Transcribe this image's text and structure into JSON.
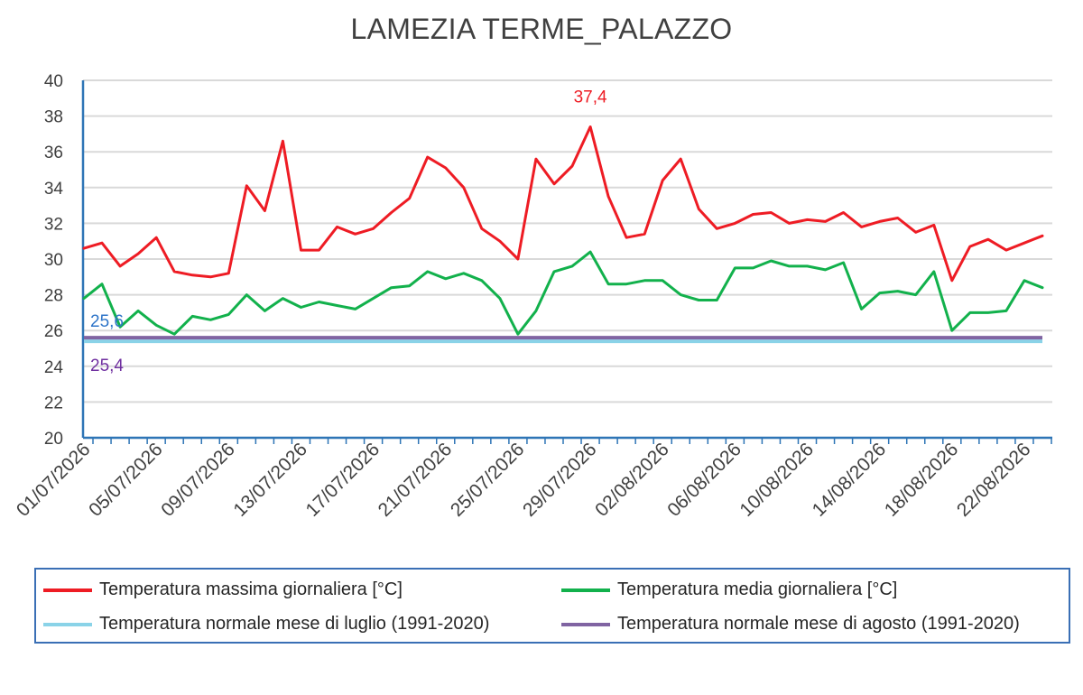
{
  "chart_data": {
    "type": "line",
    "title": "LAMEZIA TERME_PALAZZO",
    "xlabel": "",
    "ylabel": "",
    "ylim": [
      20,
      40
    ],
    "yticks": [
      "20",
      "22",
      "24",
      "26",
      "28",
      "30",
      "32",
      "34",
      "36",
      "38",
      "40"
    ],
    "x": [
      "01/07/2026",
      "02/07/2026",
      "03/07/2026",
      "04/07/2026",
      "05/07/2026",
      "06/07/2026",
      "07/07/2026",
      "08/07/2026",
      "09/07/2026",
      "10/07/2026",
      "11/07/2026",
      "12/07/2026",
      "13/07/2026",
      "14/07/2026",
      "15/07/2026",
      "16/07/2026",
      "17/07/2026",
      "18/07/2026",
      "19/07/2026",
      "20/07/2026",
      "21/07/2026",
      "22/07/2026",
      "23/07/2026",
      "24/07/2026",
      "25/07/2026",
      "26/07/2026",
      "27/07/2026",
      "28/07/2026",
      "29/07/2026",
      "30/07/2026",
      "31/07/2026",
      "01/08/2026",
      "02/08/2026",
      "03/08/2026",
      "04/08/2026",
      "05/08/2026",
      "06/08/2026",
      "07/08/2026",
      "08/08/2026",
      "09/08/2026",
      "10/08/2026",
      "11/08/2026",
      "12/08/2026",
      "13/08/2026",
      "14/08/2026",
      "15/08/2026",
      "16/08/2026",
      "17/08/2026",
      "18/08/2026",
      "19/08/2026",
      "20/08/2026",
      "21/08/2026",
      "22/08/2026",
      "23/08/2026"
    ],
    "xtick_labels": [
      "01/07/2026",
      "05/07/2026",
      "09/07/2026",
      "13/07/2026",
      "17/07/2026",
      "21/07/2026",
      "25/07/2026",
      "29/07/2026",
      "02/08/2026",
      "06/08/2026",
      "10/08/2026",
      "14/08/2026",
      "18/08/2026",
      "22/08/2026"
    ],
    "grid": true,
    "legend_position": "bottom",
    "series": [
      {
        "name": "Temperatura massima giornaliera [°C]",
        "color": "#ee1c24",
        "values": [
          30.6,
          30.9,
          29.6,
          30.3,
          31.2,
          29.3,
          29.1,
          29.0,
          29.2,
          34.1,
          32.7,
          36.6,
          30.5,
          30.5,
          31.8,
          31.4,
          31.7,
          32.6,
          33.4,
          35.7,
          35.1,
          34.0,
          31.7,
          31.0,
          30.0,
          35.6,
          34.2,
          35.2,
          37.4,
          33.5,
          31.2,
          31.4,
          34.4,
          35.6,
          32.8,
          31.7,
          32.0,
          32.5,
          32.6,
          32.0,
          32.2,
          32.1,
          32.6,
          31.8,
          32.1,
          32.3,
          31.5,
          31.9,
          28.8,
          30.7,
          31.1,
          30.5,
          30.9,
          31.3
        ]
      },
      {
        "name": "Temperatura media giornaliera [°C]",
        "color": "#12b14c",
        "values": [
          27.8,
          28.6,
          26.2,
          27.1,
          26.3,
          25.8,
          26.8,
          26.6,
          26.9,
          28.0,
          27.1,
          27.8,
          27.3,
          27.6,
          27.4,
          27.2,
          27.8,
          28.4,
          28.5,
          29.3,
          28.9,
          29.2,
          28.8,
          27.8,
          25.8,
          27.1,
          29.3,
          29.6,
          30.4,
          28.6,
          28.6,
          28.8,
          28.8,
          28.0,
          27.7,
          27.7,
          29.5,
          29.5,
          29.9,
          29.6,
          29.6,
          29.4,
          29.8,
          27.2,
          28.1,
          28.2,
          28.0,
          29.3,
          26.0,
          27.0,
          27.0,
          27.1,
          28.8,
          28.4
        ]
      },
      {
        "name": "Temperatura normale mese di luglio (1991-2020)",
        "color": "#8ad3e8",
        "constant": 25.4,
        "label": "25,4",
        "label_color": "#7030a0"
      },
      {
        "name": "Temperatura normale mese di agosto (1991-2020)",
        "color": "#8064a2",
        "constant": 25.6,
        "label": "25,6",
        "label_color": "#2f75c8"
      }
    ],
    "annotations": [
      {
        "text": "37,4",
        "x": "29/07/2026",
        "y": 37.4,
        "color": "#ee1c24"
      }
    ]
  }
}
